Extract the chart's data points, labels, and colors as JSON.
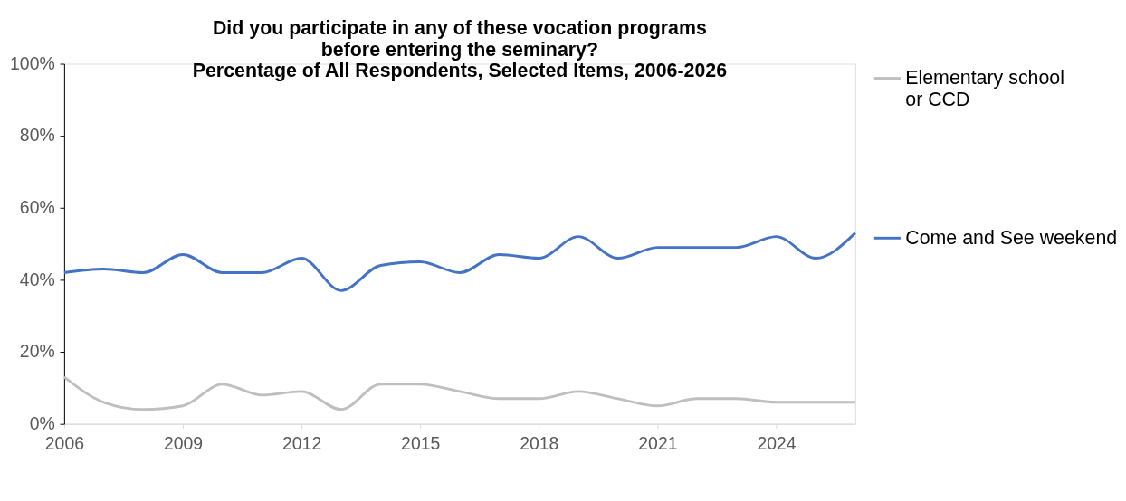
{
  "chart_data": {
    "type": "line",
    "title": [
      "Did you participate in any of these vocation programs",
      "before entering the seminary?",
      "Percentage of All Respondents, Selected Items, 2006-2026"
    ],
    "x": [
      2006,
      2007,
      2008,
      2009,
      2010,
      2011,
      2012,
      2013,
      2014,
      2015,
      2016,
      2017,
      2018,
      2019,
      2020,
      2021,
      2022,
      2023,
      2024,
      2025,
      2026
    ],
    "series": [
      {
        "name": "Elementary school or CCD",
        "color": "#bfbfbf",
        "values": [
          13,
          6,
          4,
          5,
          11,
          8,
          9,
          4,
          11,
          11,
          9,
          7,
          7,
          9,
          7,
          5,
          7,
          7,
          6,
          6,
          6
        ]
      },
      {
        "name": "Come and See weekend",
        "color": "#4472c4",
        "values": [
          42,
          43,
          42,
          47,
          42,
          42,
          46,
          37,
          44,
          45,
          42,
          47,
          46,
          52,
          46,
          49,
          49,
          49,
          52,
          46,
          53
        ]
      }
    ],
    "xlim": [
      2006,
      2026
    ],
    "xticks": [
      2006,
      2009,
      2012,
      2015,
      2018,
      2021,
      2024
    ],
    "ylim": [
      0,
      100
    ],
    "yticks": [
      {
        "value": 0,
        "label": "0%"
      },
      {
        "value": 20,
        "label": "20%"
      },
      {
        "value": 40,
        "label": "40%"
      },
      {
        "value": 60,
        "label": "60%"
      },
      {
        "value": 80,
        "label": "80%"
      },
      {
        "value": 100,
        "label": "100%"
      }
    ],
    "grid": false,
    "legend": "right",
    "marker": "none",
    "line_style": "solid"
  }
}
